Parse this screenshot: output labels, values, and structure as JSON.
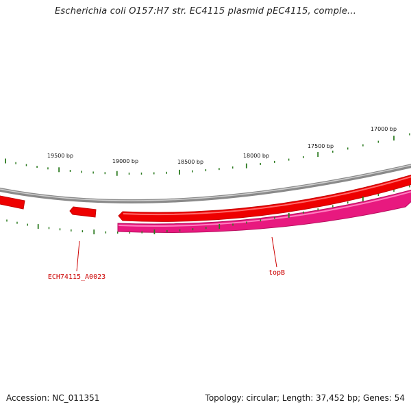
{
  "title": "Escherichia coli O157:H7 str. EC4115 plasmid pEC4115, comple...",
  "footer": {
    "accession": "Accession: NC_011351",
    "summary": "Topology: circular; Length: 37,452 bp; Genes: 54"
  },
  "colors": {
    "backbone": "#8a8a8a",
    "forward_gene": "#ee0000",
    "reverse_gene": "#e8197f",
    "tick": "#2b7a1f",
    "label": "#cc0000"
  },
  "position_labels": [
    "19500 bp",
    "19000 bp",
    "18500 bp",
    "18000 bp",
    "17500 bp",
    "17000 bp"
  ],
  "genes": [
    {
      "name": "ECH74115_A0023",
      "strand": "forward"
    },
    {
      "name": "topB",
      "strand": "reverse"
    }
  ]
}
